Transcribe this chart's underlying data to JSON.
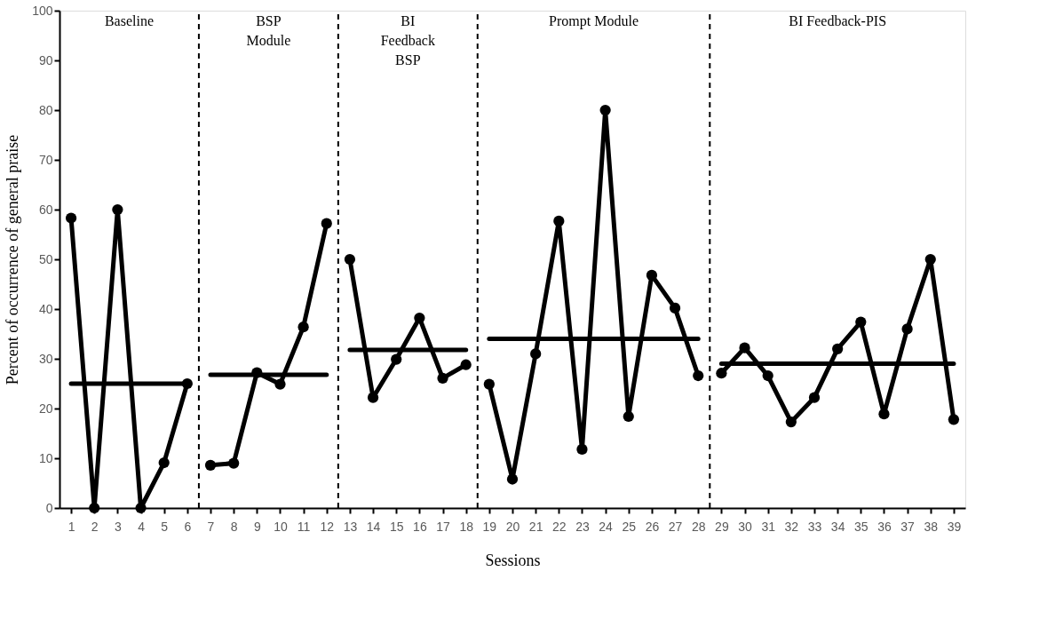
{
  "chart_data": {
    "type": "line",
    "xlabel": "Sessions",
    "ylabel": "Percent of occurrence of general praise",
    "xlim": [
      0.5,
      39.5
    ],
    "xticks": [
      1,
      2,
      3,
      4,
      5,
      6,
      7,
      8,
      9,
      10,
      11,
      12,
      13,
      14,
      15,
      16,
      17,
      18,
      19,
      20,
      21,
      22,
      23,
      24,
      25,
      26,
      27,
      28,
      29,
      30,
      31,
      32,
      33,
      34,
      35,
      36,
      37,
      38,
      39
    ],
    "ylim": [
      0,
      100
    ],
    "yticks": [
      0,
      10,
      20,
      30,
      40,
      50,
      60,
      70,
      80,
      90,
      100
    ],
    "grid": false,
    "line_style": "solid",
    "series": [
      {
        "color": "#000000",
        "marker": "circle",
        "x": [
          1,
          2,
          3,
          4,
          5,
          6
        ],
        "values": [
          58.3,
          0,
          60,
          0,
          9.1,
          25
        ]
      },
      {
        "color": "#000000",
        "marker": "none",
        "x": [
          1,
          6
        ],
        "values": [
          25,
          25
        ]
      },
      {
        "color": "#000000",
        "marker": "circle",
        "x": [
          7,
          8,
          9,
          10,
          11,
          12
        ],
        "values": [
          8.6,
          9,
          27.2,
          24.9,
          36.4,
          57.2
        ]
      },
      {
        "color": "#000000",
        "marker": "none",
        "x": [
          7,
          12
        ],
        "values": [
          26.8,
          26.8
        ]
      },
      {
        "color": "#000000",
        "marker": "circle",
        "x": [
          13,
          14,
          15,
          16,
          17,
          18
        ],
        "values": [
          50,
          22.2,
          29.9,
          38.2,
          26.1,
          28.8
        ]
      },
      {
        "color": "#000000",
        "marker": "none",
        "x": [
          13,
          18
        ],
        "values": [
          31.8,
          31.8
        ]
      },
      {
        "color": "#000000",
        "marker": "circle",
        "x": [
          19,
          20,
          21,
          22,
          23,
          24,
          25,
          26,
          27,
          28
        ],
        "values": [
          24.9,
          5.8,
          31,
          57.7,
          11.8,
          80,
          18.4,
          46.8,
          40.2,
          26.6
        ]
      },
      {
        "color": "#000000",
        "marker": "none",
        "x": [
          19,
          28
        ],
        "values": [
          34,
          34
        ]
      },
      {
        "color": "#000000",
        "marker": "circle",
        "x": [
          29,
          30,
          31,
          32,
          33,
          34,
          35,
          36,
          37,
          38,
          39
        ],
        "values": [
          27.1,
          32.2,
          26.6,
          17.3,
          22.2,
          32,
          37.4,
          18.9,
          36,
          50,
          17.8
        ]
      },
      {
        "color": "#000000",
        "marker": "none",
        "x": [
          29,
          39
        ],
        "values": [
          29,
          29
        ]
      }
    ],
    "ref_lines": [
      {
        "axis": "x",
        "value": 6.5,
        "color": "#000000",
        "line_style": "dashed"
      },
      {
        "axis": "x",
        "value": 12.5,
        "color": "#000000",
        "line_style": "dashed"
      },
      {
        "axis": "x",
        "value": 18.5,
        "color": "#000000",
        "line_style": "dashed"
      },
      {
        "axis": "x",
        "value": 28.5,
        "color": "#000000",
        "line_style": "dashed"
      }
    ],
    "annotations": [
      "Baseline",
      "BSP\nModule",
      "BI\nFeedback\nBSP",
      "Prompt Module",
      "BI Feedback-PIS"
    ]
  }
}
